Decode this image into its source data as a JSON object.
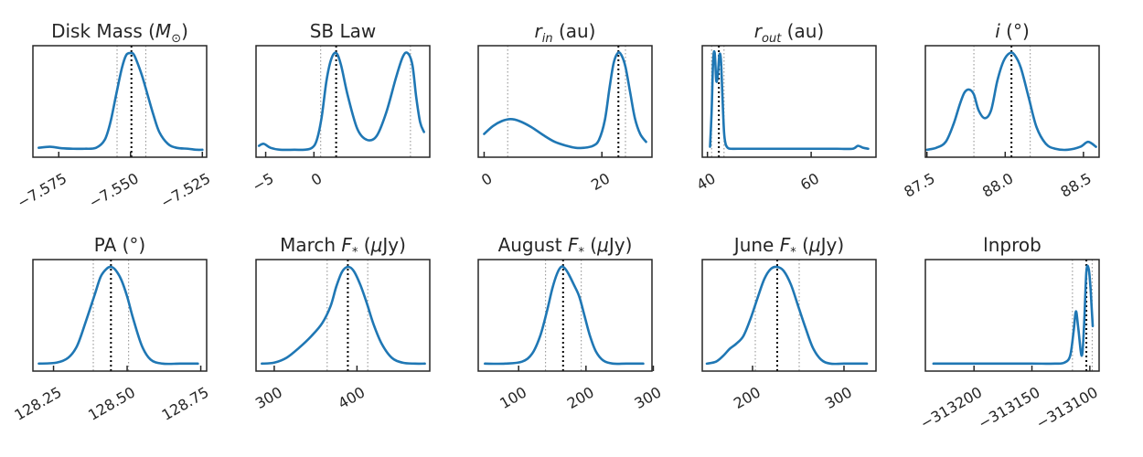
{
  "figure": {
    "curve_color": "#1f77b4",
    "median_color": "#000000",
    "quantile_color": "#8c8c8c"
  },
  "chart_data": [
    {
      "type": "line",
      "title_parts": [
        {
          "t": "Disk Mass ("
        },
        {
          "t": "M",
          "i": true
        },
        {
          "t": "⊙",
          "sub": true
        },
        {
          "t": ")"
        }
      ],
      "xlim": [
        -7.584,
        -7.5235
      ],
      "ticks": [
        -7.575,
        -7.55,
        -7.525
      ],
      "tick_labels": [
        "−7.575",
        "−7.550",
        "−7.525"
      ],
      "median": -7.5497,
      "quantiles": [
        -7.5547,
        -7.5447
      ],
      "x": [
        -7.582,
        -7.578,
        -7.574,
        -7.57,
        -7.566,
        -7.562,
        -7.559,
        -7.557,
        -7.555,
        -7.553,
        -7.5515,
        -7.55,
        -7.549,
        -7.548,
        -7.546,
        -7.544,
        -7.542,
        -7.54,
        -7.537,
        -7.534,
        -7.53,
        -7.527,
        -7.525
      ],
      "y": [
        0.04,
        0.05,
        0.035,
        0.03,
        0.03,
        0.04,
        0.12,
        0.3,
        0.58,
        0.85,
        0.98,
        1.0,
        0.99,
        0.93,
        0.77,
        0.57,
        0.37,
        0.2,
        0.08,
        0.04,
        0.03,
        0.02,
        0.02
      ]
    },
    {
      "type": "line",
      "title_parts": [
        {
          "t": "SB Law"
        }
      ],
      "xlim": [
        -6.0,
        12.0
      ],
      "ticks": [
        -5,
        0
      ],
      "tick_labels": [
        "−5",
        "0"
      ],
      "median": 2.3,
      "quantiles": [
        0.7,
        10.0
      ],
      "x": [
        -5.7,
        -5.2,
        -4.5,
        -3.5,
        -2.0,
        -1.0,
        -0.2,
        0.3,
        0.8,
        1.3,
        1.8,
        2.3,
        2.8,
        3.5,
        4.5,
        5.5,
        6.5,
        7.5,
        8.5,
        9.2,
        9.7,
        10.2,
        10.6,
        11.0,
        11.4
      ],
      "y": [
        0.06,
        0.08,
        0.04,
        0.02,
        0.02,
        0.02,
        0.04,
        0.12,
        0.35,
        0.72,
        0.94,
        1.0,
        0.88,
        0.57,
        0.23,
        0.12,
        0.16,
        0.4,
        0.75,
        0.96,
        1.0,
        0.88,
        0.55,
        0.3,
        0.2
      ]
    },
    {
      "type": "line",
      "title_parts": [
        {
          "t": "r",
          "i": true
        },
        {
          "t": "in",
          "sub": true,
          "i": true
        },
        {
          "t": " (au)"
        }
      ],
      "xlim": [
        -1.0,
        28.5
      ],
      "ticks": [
        0,
        20
      ],
      "tick_labels": [
        "0",
        "20"
      ],
      "median": 22.8,
      "quantiles": [
        4.0,
        24.0
      ],
      "x": [
        0.0,
        1.5,
        3.0,
        4.5,
        6.0,
        8.0,
        10.0,
        12.0,
        14.0,
        15.5,
        17.0,
        18.5,
        19.5,
        20.5,
        21.3,
        22.0,
        22.7,
        23.3,
        24.0,
        24.8,
        25.6,
        26.5,
        27.5
      ],
      "y": [
        0.18,
        0.26,
        0.31,
        0.33,
        0.31,
        0.25,
        0.17,
        0.1,
        0.06,
        0.04,
        0.04,
        0.06,
        0.12,
        0.32,
        0.65,
        0.9,
        1.0,
        0.98,
        0.86,
        0.6,
        0.34,
        0.18,
        0.1
      ]
    },
    {
      "type": "line",
      "title_parts": [
        {
          "t": "r",
          "i": true
        },
        {
          "t": "out",
          "sub": true,
          "i": true
        },
        {
          "t": " (au)"
        }
      ],
      "xlim": [
        39.0,
        72.5
      ],
      "ticks": [
        40,
        60
      ],
      "tick_labels": [
        "40",
        "60"
      ],
      "median": 42.2,
      "quantiles": [
        40.8,
        43.2
      ],
      "x": [
        40.5,
        40.8,
        41.1,
        41.4,
        41.7,
        42.0,
        42.3,
        42.6,
        42.9,
        43.2,
        43.5,
        43.9,
        44.5,
        46.0,
        50.0,
        55.0,
        60.0,
        65.0,
        68.0,
        69.0,
        70.0,
        71.0
      ],
      "y": [
        0.05,
        0.4,
        0.92,
        1.0,
        0.72,
        0.78,
        0.98,
        0.93,
        0.55,
        0.2,
        0.08,
        0.04,
        0.03,
        0.03,
        0.03,
        0.03,
        0.03,
        0.03,
        0.03,
        0.06,
        0.04,
        0.03
      ]
    },
    {
      "type": "line",
      "title_parts": [
        {
          "t": "i",
          "i": true
        },
        {
          "t": " (°)"
        }
      ],
      "xlim": [
        87.49,
        88.6
      ],
      "ticks": [
        87.5,
        88.0,
        88.5
      ],
      "tick_labels": [
        "87.5",
        "88.0",
        "88.5"
      ],
      "median": 88.04,
      "quantiles": [
        87.8,
        88.16
      ],
      "x": [
        87.5,
        87.56,
        87.62,
        87.67,
        87.71,
        87.74,
        87.77,
        87.8,
        87.83,
        87.87,
        87.91,
        87.95,
        87.99,
        88.03,
        88.06,
        88.1,
        88.15,
        88.2,
        88.26,
        88.32,
        88.4,
        88.48,
        88.53,
        88.58
      ],
      "y": [
        0.02,
        0.04,
        0.1,
        0.28,
        0.48,
        0.6,
        0.63,
        0.58,
        0.42,
        0.34,
        0.42,
        0.72,
        0.92,
        1.0,
        0.98,
        0.85,
        0.55,
        0.25,
        0.08,
        0.03,
        0.02,
        0.05,
        0.1,
        0.05
      ]
    },
    {
      "type": "line",
      "title_parts": [
        {
          "t": "PA  (°)"
        }
      ],
      "xlim": [
        128.18,
        128.77
      ],
      "ticks": [
        128.25,
        128.5,
        128.75
      ],
      "tick_labels": [
        "128.25",
        "128.50",
        "128.75"
      ],
      "median": 128.445,
      "quantiles": [
        128.385,
        128.505
      ],
      "x": [
        128.2,
        128.26,
        128.3,
        128.33,
        128.36,
        128.39,
        128.41,
        128.43,
        128.445,
        128.46,
        128.48,
        128.5,
        128.52,
        128.55,
        128.58,
        128.62,
        128.68,
        128.74
      ],
      "y": [
        0.02,
        0.03,
        0.08,
        0.2,
        0.45,
        0.72,
        0.9,
        0.98,
        1.0,
        0.97,
        0.87,
        0.7,
        0.48,
        0.2,
        0.06,
        0.02,
        0.02,
        0.02
      ]
    },
    {
      "type": "line",
      "title_parts": [
        {
          "t": "March "
        },
        {
          "t": "F",
          "i": true
        },
        {
          "t": "*",
          "sub": true
        },
        {
          "t": " ("
        },
        {
          "t": "μ",
          "i": true
        },
        {
          "t": "Jy)"
        }
      ],
      "xlim": [
        278.0,
        488.0
      ],
      "ticks": [
        300,
        400
      ],
      "tick_labels": [
        "300",
        "400"
      ],
      "median": 389.0,
      "quantiles": [
        364.0,
        413.0
      ],
      "x": [
        285.0,
        300.0,
        315.0,
        330.0,
        345.0,
        358.0,
        368.0,
        375.0,
        382.0,
        389.0,
        396.0,
        404.0,
        412.0,
        420.0,
        430.0,
        442.0,
        455.0,
        470.0,
        482.0
      ],
      "y": [
        0.02,
        0.03,
        0.08,
        0.18,
        0.3,
        0.43,
        0.6,
        0.8,
        0.95,
        1.0,
        0.96,
        0.82,
        0.63,
        0.42,
        0.22,
        0.08,
        0.03,
        0.02,
        0.02
      ]
    },
    {
      "type": "line",
      "title_parts": [
        {
          "t": "August "
        },
        {
          "t": "F",
          "i": true
        },
        {
          "t": "*",
          "sub": true
        },
        {
          "t": " ("
        },
        {
          "t": "μ",
          "i": true
        },
        {
          "t": "Jy)"
        }
      ],
      "xlim": [
        40.0,
        298.0
      ],
      "ticks": [
        100,
        200,
        300
      ],
      "tick_labels": [
        "100",
        "200",
        "300"
      ],
      "median": 166.0,
      "quantiles": [
        140.0,
        193.0
      ],
      "x": [
        50.0,
        80.0,
        105.0,
        120.0,
        132.0,
        142.0,
        150.0,
        157.0,
        163.0,
        168.0,
        174.0,
        182.0,
        190.0,
        198.0,
        206.0,
        215.0,
        226.0,
        240.0,
        260.0,
        285.0
      ],
      "y": [
        0.02,
        0.02,
        0.04,
        0.12,
        0.3,
        0.55,
        0.78,
        0.93,
        1.0,
        0.99,
        0.93,
        0.82,
        0.7,
        0.5,
        0.3,
        0.14,
        0.05,
        0.02,
        0.02,
        0.02
      ]
    },
    {
      "type": "line",
      "title_parts": [
        {
          "t": "June "
        },
        {
          "t": "F",
          "i": true
        },
        {
          "t": "*",
          "sub": true
        },
        {
          "t": " ("
        },
        {
          "t": "μ",
          "i": true
        },
        {
          "t": "Jy)"
        }
      ],
      "xlim": [
        145.0,
        335.0
      ],
      "ticks": [
        200,
        300
      ],
      "tick_labels": [
        "200",
        "300"
      ],
      "median": 227.0,
      "quantiles": [
        203.0,
        251.0
      ],
      "x": [
        150.0,
        160.0,
        168.0,
        175.0,
        182.0,
        190.0,
        198.0,
        206.0,
        213.0,
        220.0,
        227.0,
        234.0,
        242.0,
        250.0,
        258.0,
        266.0,
        275.0,
        285.0,
        300.0,
        325.0
      ],
      "y": [
        0.02,
        0.04,
        0.1,
        0.17,
        0.22,
        0.3,
        0.48,
        0.7,
        0.88,
        0.98,
        1.0,
        0.96,
        0.82,
        0.6,
        0.38,
        0.18,
        0.06,
        0.02,
        0.02,
        0.02
      ]
    },
    {
      "type": "line",
      "title_parts": [
        {
          "t": "lnprob"
        }
      ],
      "xlim": [
        -313242.0,
        -313092.0
      ],
      "ticks": [
        -313200,
        -313150,
        -313100
      ],
      "tick_labels": [
        "−313200",
        "−313150",
        "−313100"
      ],
      "median": -313103.0,
      "quantiles": [
        -313115.0,
        -313098.0
      ],
      "x": [
        -313235.0,
        -313210.0,
        -313180.0,
        -313150.0,
        -313130.0,
        -313122.0,
        -313117.0,
        -313114.0,
        -313112.0,
        -313110.0,
        -313107.0,
        -313105.0,
        -313103.0,
        -313101.0,
        -313099.5,
        -313098.5,
        -313097.5
      ],
      "y": [
        0.02,
        0.02,
        0.02,
        0.02,
        0.02,
        0.03,
        0.1,
        0.35,
        0.55,
        0.38,
        0.1,
        0.4,
        0.95,
        0.98,
        0.8,
        0.6,
        0.4
      ]
    }
  ]
}
